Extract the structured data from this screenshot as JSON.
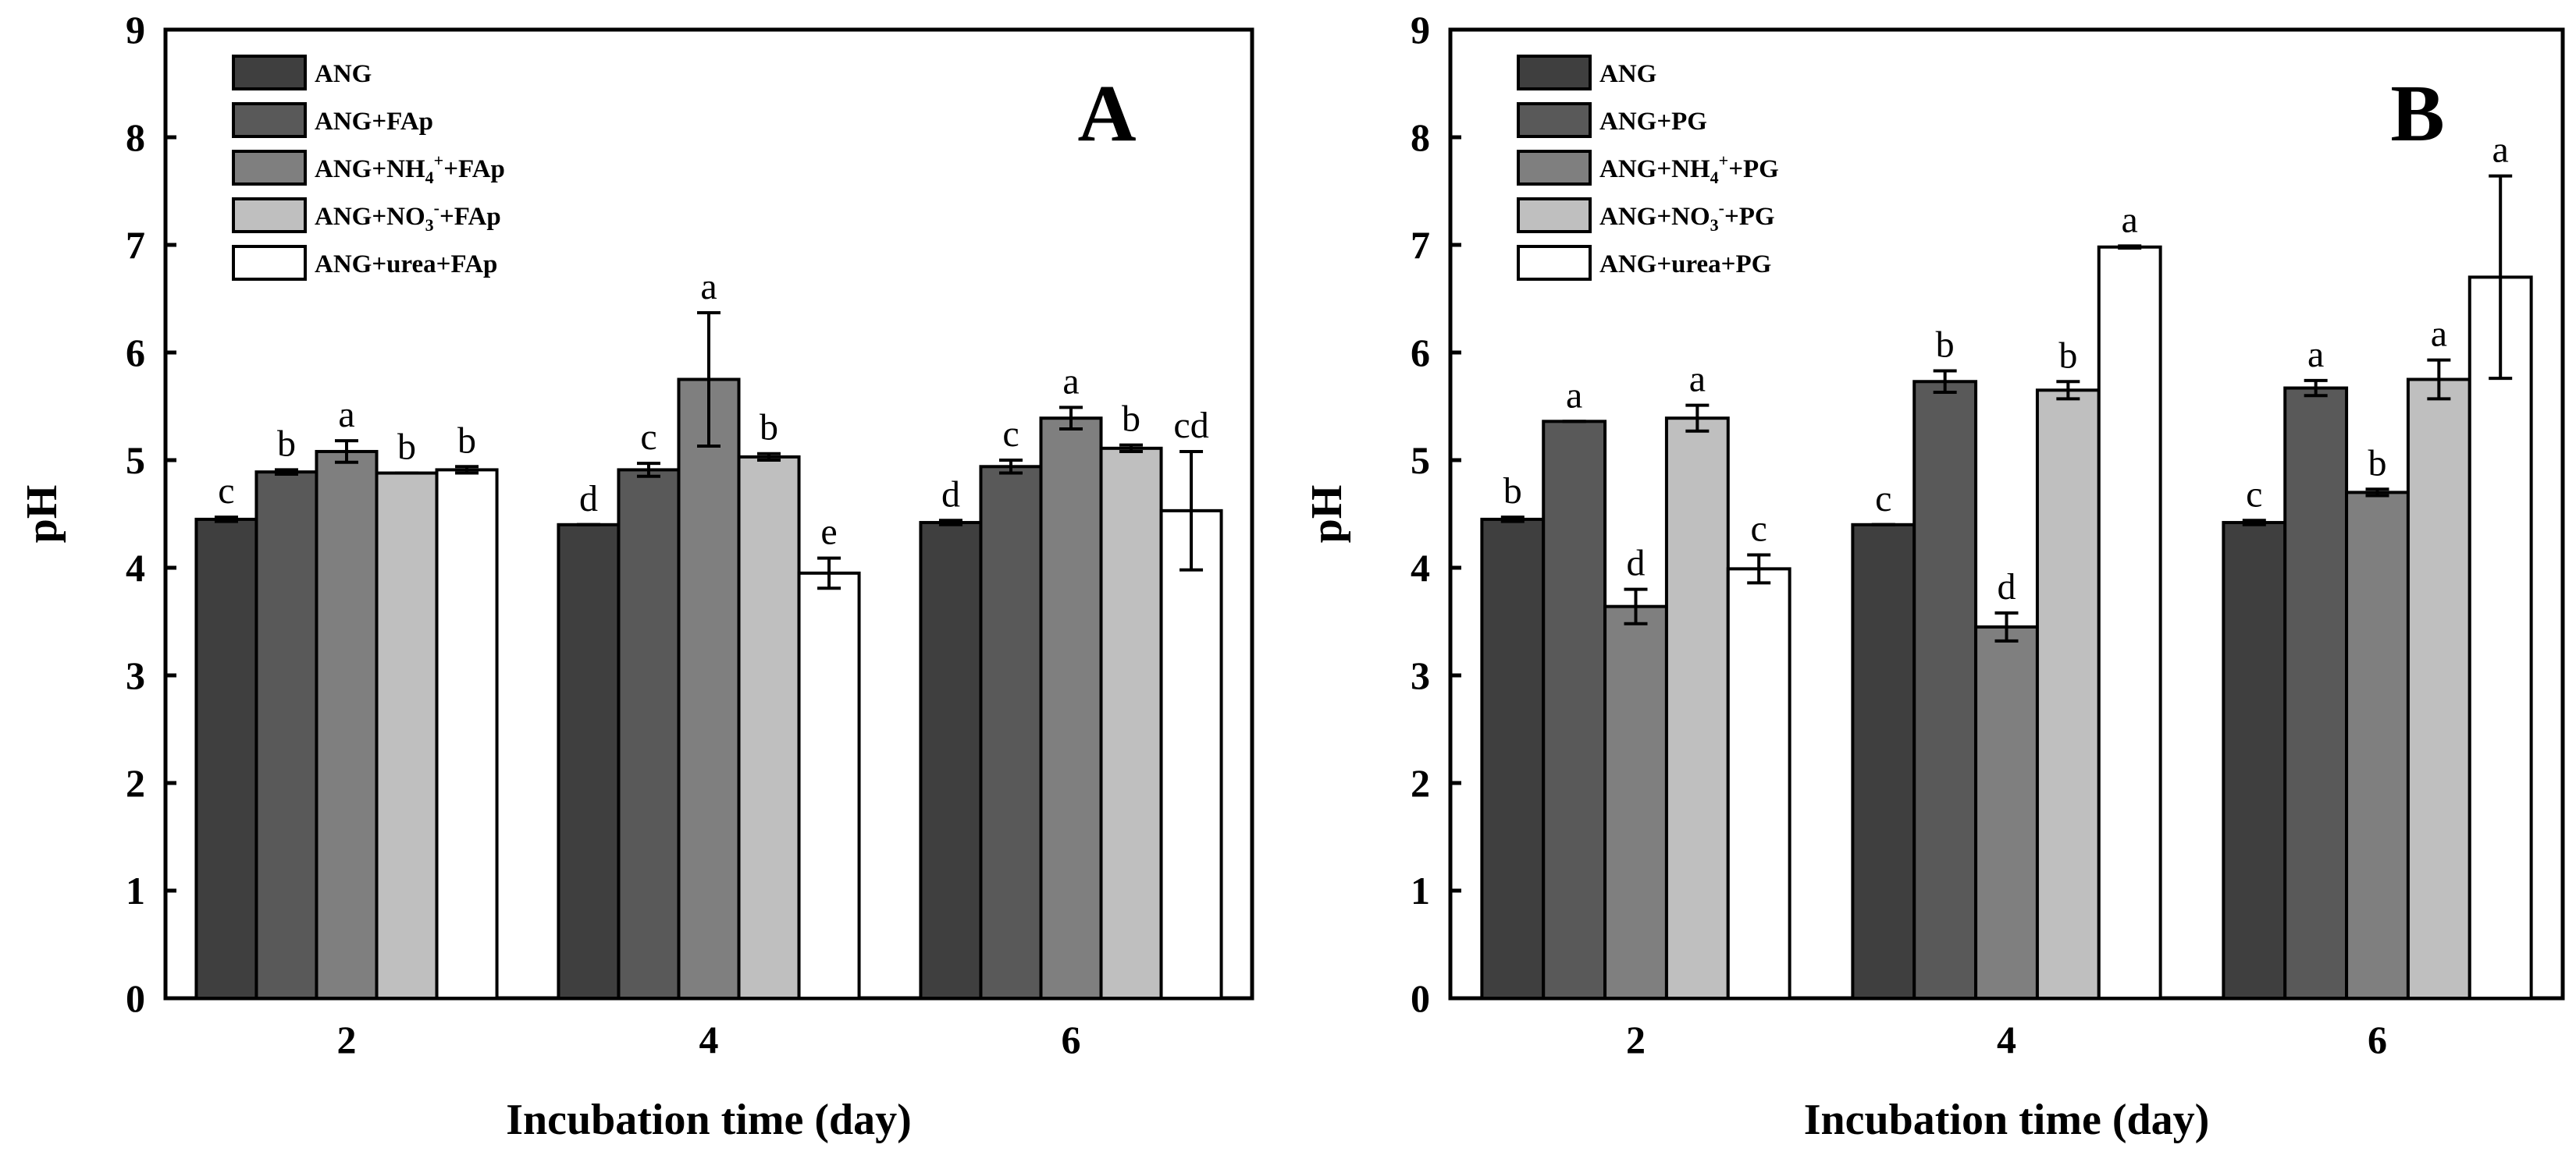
{
  "colors": {
    "series": [
      "#3f3f3f",
      "#595959",
      "#7f7f7f",
      "#bfbfbf",
      "#ffffff"
    ],
    "stroke": "#000000"
  },
  "chart_data": [
    {
      "type": "bar",
      "panel_label": "A",
      "categories": [
        "2",
        "4",
        "6"
      ],
      "xlabel": "Incubation time (day)",
      "ylabel": "pH",
      "ylim": [
        0,
        9
      ],
      "yticks": [
        "0",
        "1",
        "2",
        "3",
        "4",
        "5",
        "6",
        "7",
        "8",
        "9"
      ],
      "legend_position": "top-left",
      "legend": [
        {
          "parts": [
            {
              "t": "ANG"
            }
          ]
        },
        {
          "parts": [
            {
              "t": "ANG+FAp"
            }
          ]
        },
        {
          "parts": [
            {
              "t": "ANG+NH"
            },
            {
              "t": "4",
              "sub": true
            },
            {
              "t": "+",
              "sup": true
            },
            {
              "t": "+FAp"
            }
          ]
        },
        {
          "parts": [
            {
              "t": "ANG+NO"
            },
            {
              "t": "3",
              "sub": true
            },
            {
              "t": "-",
              "sup": true
            },
            {
              "t": "+FAp"
            }
          ]
        },
        {
          "parts": [
            {
              "t": "ANG+urea+FAp"
            }
          ]
        }
      ],
      "series": [
        {
          "name": "ANG",
          "values": [
            4.45,
            4.4,
            4.42
          ],
          "errors": [
            0.02,
            0.0,
            0.02
          ],
          "letters": [
            "c",
            "d",
            "d"
          ]
        },
        {
          "name": "ANG+FAp",
          "values": [
            4.89,
            4.91,
            4.94
          ],
          "errors": [
            0.02,
            0.06,
            0.06
          ],
          "letters": [
            "b",
            "c",
            "c"
          ]
        },
        {
          "name": "ANG+NH4++FAp",
          "values": [
            5.08,
            5.75,
            5.39
          ],
          "errors": [
            0.1,
            0.62,
            0.1
          ],
          "letters": [
            "a",
            "a",
            "a"
          ]
        },
        {
          "name": "ANG+NO3-+FAp",
          "values": [
            4.88,
            5.03,
            5.11
          ],
          "errors": [
            0.0,
            0.03,
            0.03
          ],
          "letters": [
            "b",
            "b",
            "b"
          ]
        },
        {
          "name": "ANG+urea+FAp",
          "values": [
            4.91,
            3.95,
            4.53
          ],
          "errors": [
            0.03,
            0.14,
            0.55
          ],
          "letters": [
            "b",
            "e",
            "cd"
          ]
        }
      ]
    },
    {
      "type": "bar",
      "panel_label": "B",
      "categories": [
        "2",
        "4",
        "6"
      ],
      "xlabel": "Incubation time (day)",
      "ylabel": "pH",
      "ylim": [
        0,
        9
      ],
      "yticks": [
        "0",
        "1",
        "2",
        "3",
        "4",
        "5",
        "6",
        "7",
        "8",
        "9"
      ],
      "legend_position": "top-left",
      "legend": [
        {
          "parts": [
            {
              "t": "ANG"
            }
          ]
        },
        {
          "parts": [
            {
              "t": "ANG+PG"
            }
          ]
        },
        {
          "parts": [
            {
              "t": "ANG+NH"
            },
            {
              "t": "4",
              "sub": true
            },
            {
              "t": "+",
              "sup": true
            },
            {
              "t": "+PG"
            }
          ]
        },
        {
          "parts": [
            {
              "t": "ANG+NO"
            },
            {
              "t": "3",
              "sub": true
            },
            {
              "t": "-",
              "sup": true
            },
            {
              "t": "+PG"
            }
          ]
        },
        {
          "parts": [
            {
              "t": "ANG+urea+PG"
            }
          ]
        }
      ],
      "series": [
        {
          "name": "ANG",
          "values": [
            4.45,
            4.4,
            4.42
          ],
          "errors": [
            0.02,
            0.0,
            0.02
          ],
          "letters": [
            "b",
            "c",
            "c"
          ]
        },
        {
          "name": "ANG+PG",
          "values": [
            5.36,
            5.73,
            5.67
          ],
          "errors": [
            0.0,
            0.1,
            0.07
          ],
          "letters": [
            "a",
            "b",
            "a"
          ]
        },
        {
          "name": "ANG+NH4++PG",
          "values": [
            3.64,
            3.45,
            4.7
          ],
          "errors": [
            0.16,
            0.13,
            0.03
          ],
          "letters": [
            "d",
            "d",
            "b"
          ]
        },
        {
          "name": "ANG+NO3-+PG",
          "values": [
            5.39,
            5.65,
            5.75
          ],
          "errors": [
            0.12,
            0.08,
            0.18
          ],
          "letters": [
            "a",
            "b",
            "a"
          ]
        },
        {
          "name": "ANG+urea+PG",
          "values": [
            3.99,
            6.98,
            6.7
          ],
          "errors": [
            0.13,
            0.01,
            0.94
          ],
          "letters": [
            "c",
            "a",
            "a"
          ]
        }
      ]
    }
  ]
}
